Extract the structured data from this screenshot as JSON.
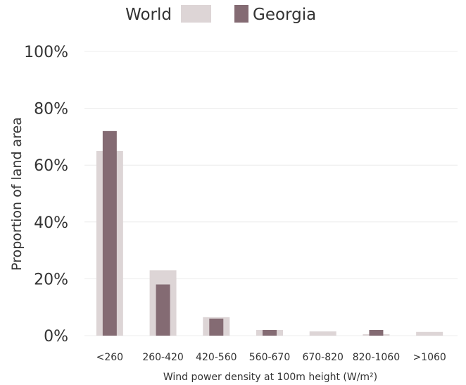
{
  "chart_data": {
    "type": "bar",
    "categories": [
      "<260",
      "260-420",
      "420-560",
      "560-670",
      "670-820",
      "820-1060",
      ">1060"
    ],
    "series": [
      {
        "name": "World",
        "values": [
          65,
          23,
          6.5,
          2,
          1.5,
          0.5,
          1.3
        ],
        "color": "#ddd5d6"
      },
      {
        "name": "Georgia",
        "values": [
          72,
          18,
          6,
          2,
          0,
          2,
          0
        ],
        "color": "#846b73"
      }
    ],
    "ylim": [
      0,
      100
    ],
    "yticks": [
      0,
      20,
      40,
      60,
      80,
      100
    ],
    "ytick_labels": [
      "0%",
      "20%",
      "40%",
      "60%",
      "80%",
      "100%"
    ],
    "ylabel": "Proportion of land area",
    "xlabel": "Wind power density at 100m height (W/m²)",
    "grid": true,
    "legend_position": "top-center"
  }
}
